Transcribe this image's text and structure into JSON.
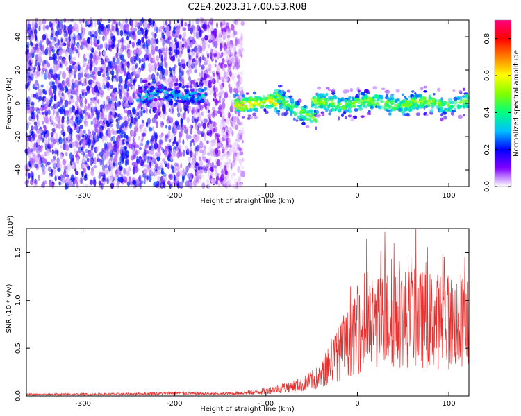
{
  "title": "C2E4.2023.317.00.53.R08",
  "chart_data": [
    {
      "type": "heatmap",
      "xlabel": "Height of straight line (km)",
      "ylabel": "Frequency (Hz)",
      "xlim": [
        -362,
        122
      ],
      "ylim": [
        -50,
        50
      ],
      "x_ticks": [
        -300,
        -200,
        -100,
        0,
        100
      ],
      "y_ticks": [
        -40,
        -20,
        0,
        20,
        40
      ],
      "x_tick_labels": [
        "-300",
        "-200",
        "-100",
        "0",
        "100"
      ],
      "y_tick_labels": [
        "-40",
        "-20",
        "0",
        "20",
        "40"
      ],
      "colorbar": {
        "label": "Normalized spectral amplitude",
        "range": [
          0,
          0.9
        ],
        "ticks": [
          0.0,
          0.2,
          0.4,
          0.6,
          0.8
        ],
        "tick_labels": [
          "0.0",
          "0.2",
          "0.4",
          "0.6",
          "0.8"
        ],
        "colormap": [
          "#ffffff",
          "#8000ff",
          "#0000ff",
          "#00c0ff",
          "#00ff80",
          "#80ff00",
          "#ffff00",
          "#ff8000",
          "#ff0000",
          "#ff0080"
        ]
      },
      "features": [
        {
          "name": "noise",
          "x_range": [
            -362,
            -125
          ],
          "freq_range": [
            -50,
            50
          ],
          "level": 0.15
        },
        {
          "name": "band",
          "x_range": [
            -240,
            -165
          ],
          "freq_center": 5,
          "level": 0.25
        },
        {
          "name": "band",
          "x_range": [
            -135,
            -85
          ],
          "freq_center": 0,
          "level": 0.55
        },
        {
          "name": "band",
          "x_range": [
            -90,
            -45
          ],
          "freq_center": 5,
          "freq_center_end": -10,
          "level": 0.45
        },
        {
          "name": "band",
          "x_range": [
            -50,
            122
          ],
          "freq_center": 0,
          "level": 0.45
        }
      ],
      "grid": false
    },
    {
      "type": "line",
      "xlabel": "Height of straight line (km)",
      "ylabel": "SNR (10 * v/v)",
      "multiplier_label": "(x10⁴)",
      "xlim": [
        -362,
        122
      ],
      "ylim": [
        0,
        1.75
      ],
      "x_ticks": [
        -300,
        -200,
        -100,
        0,
        100
      ],
      "y_ticks": [
        0.0,
        0.5,
        1.0,
        1.5
      ],
      "x_tick_labels": [
        "-300",
        "-200",
        "-100",
        "0",
        "100"
      ],
      "y_tick_labels": [
        "0.0",
        "0.5",
        "1.0",
        "1.5"
      ],
      "series_color": "#e8302e",
      "envelope": [
        {
          "x": -362,
          "y": 0.015
        },
        {
          "x": -250,
          "y": 0.02
        },
        {
          "x": -200,
          "y": 0.03
        },
        {
          "x": -150,
          "y": 0.02
        },
        {
          "x": -110,
          "y": 0.04
        },
        {
          "x": -90,
          "y": 0.07
        },
        {
          "x": -60,
          "y": 0.12
        },
        {
          "x": -40,
          "y": 0.2
        },
        {
          "x": -25,
          "y": 0.4
        },
        {
          "x": -10,
          "y": 0.55
        },
        {
          "x": 0,
          "y": 0.65
        },
        {
          "x": 15,
          "y": 0.72
        },
        {
          "x": 30,
          "y": 0.8
        },
        {
          "x": 50,
          "y": 0.82
        },
        {
          "x": 70,
          "y": 0.8
        },
        {
          "x": 100,
          "y": 0.78
        },
        {
          "x": 122,
          "y": 0.75
        }
      ],
      "spikes": [
        {
          "x": 10,
          "y": 1.65
        },
        {
          "x": 30,
          "y": 1.72
        },
        {
          "x": 40,
          "y": 1.6
        },
        {
          "x": 64,
          "y": 1.75
        },
        {
          "x": 75,
          "y": 1.4
        },
        {
          "x": 95,
          "y": 1.45
        }
      ],
      "grid": false
    }
  ]
}
